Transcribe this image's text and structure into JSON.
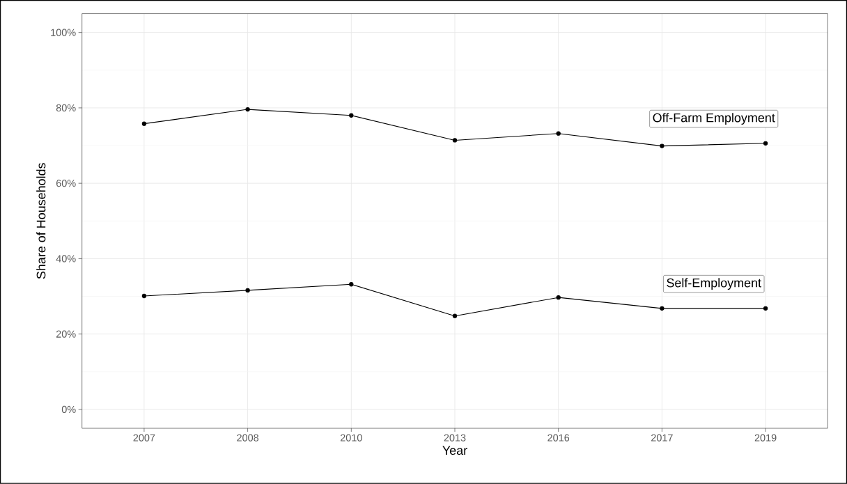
{
  "chart_data": {
    "type": "line",
    "xlabel": "Year",
    "ylabel": "Share of Households",
    "categories": [
      "2007",
      "2008",
      "2010",
      "2013",
      "2016",
      "2017",
      "2019"
    ],
    "series": [
      {
        "name": "Off-Farm Employment",
        "color": "#000000",
        "values": [
          75.8,
          79.6,
          78.0,
          71.4,
          73.2,
          69.9,
          70.6
        ]
      },
      {
        "name": "Self-Employment",
        "color": "#000000",
        "values": [
          30.1,
          31.6,
          33.2,
          24.8,
          29.7,
          26.8,
          26.8
        ]
      }
    ],
    "ylim": [
      -5,
      105
    ],
    "yticks": [
      {
        "value": 0,
        "label": "0%"
      },
      {
        "value": 20,
        "label": "20%"
      },
      {
        "value": 40,
        "label": "40%"
      },
      {
        "value": 60,
        "label": "60%"
      },
      {
        "value": 80,
        "label": "80%"
      },
      {
        "value": 100,
        "label": "100%"
      }
    ],
    "grid": true,
    "marker": "circle",
    "line_style": "solid",
    "legend": "right"
  }
}
